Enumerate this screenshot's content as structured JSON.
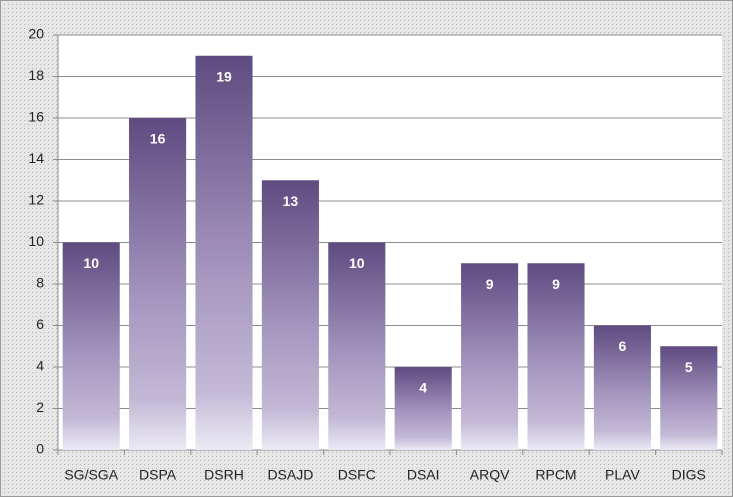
{
  "chart_data": {
    "type": "bar",
    "categories": [
      "SG/SGA",
      "DSPA",
      "DSRH",
      "DSAJD",
      "DSFC",
      "DSAI",
      "ARQV",
      "RPCM",
      "PLAV",
      "DIGS"
    ],
    "values": [
      10,
      16,
      19,
      13,
      10,
      4,
      9,
      9,
      6,
      5
    ],
    "color": "#6a5890",
    "ylim": [
      0,
      20
    ],
    "yticks": [
      0,
      2,
      4,
      6,
      8,
      10,
      12,
      14,
      16,
      18,
      20
    ],
    "grid": true
  }
}
